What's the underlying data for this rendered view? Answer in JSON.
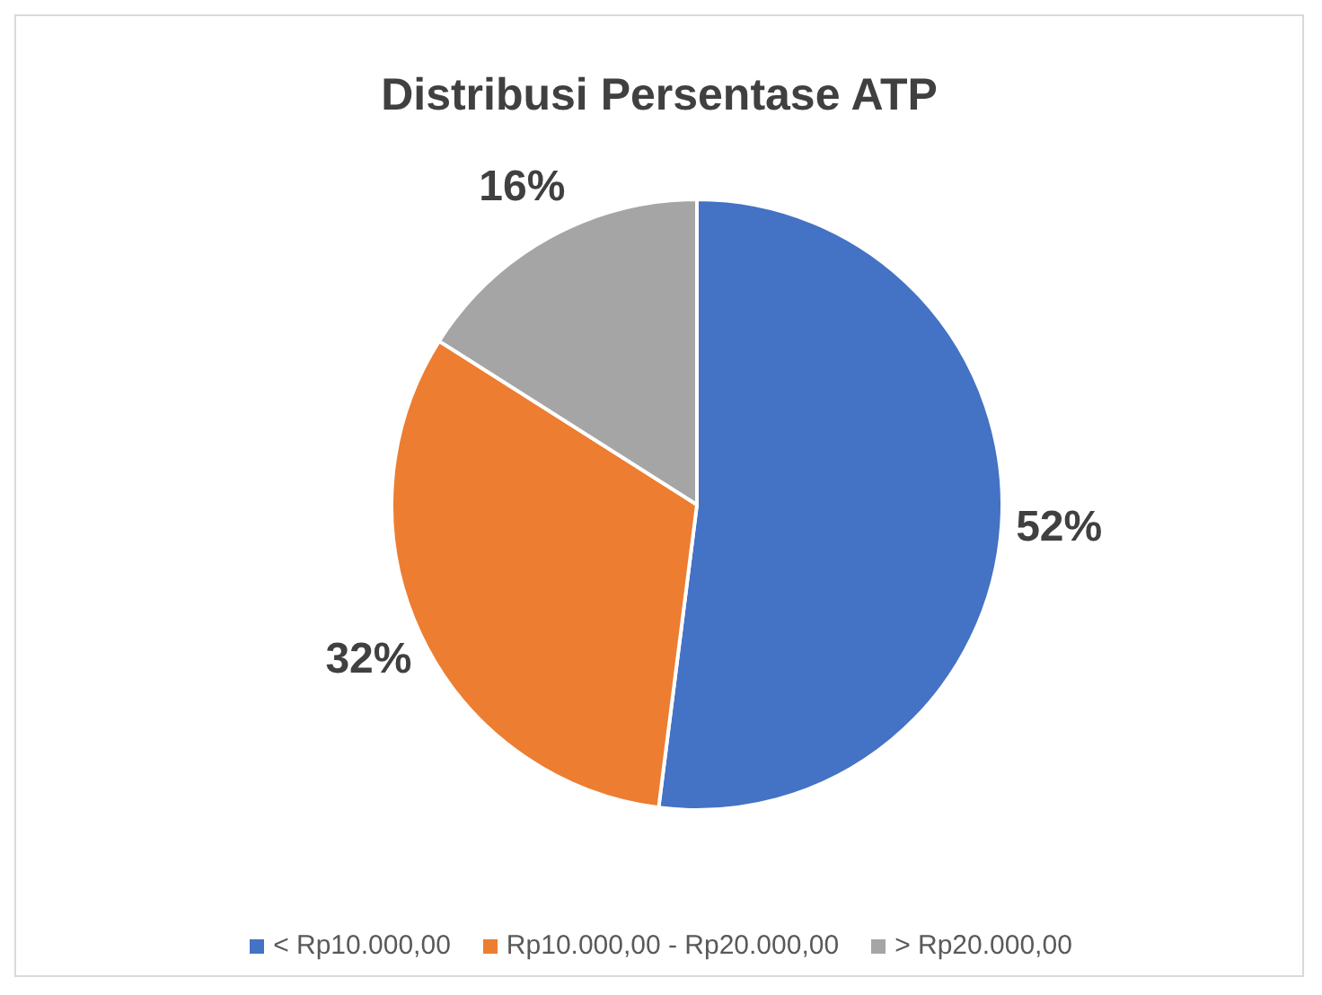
{
  "chart_data": {
    "type": "pie",
    "title": "Distribusi Persentase ATP",
    "categories": [
      "< Rp10.000,00",
      "Rp10.000,00 - Rp20.000,00",
      "> Rp20.000,00"
    ],
    "values": [
      52,
      32,
      16
    ],
    "colors": [
      "#4472c4",
      "#ed7d31",
      "#a5a5a5"
    ],
    "value_labels": [
      "52%",
      "32%",
      "16%"
    ],
    "legend": "bottom"
  }
}
